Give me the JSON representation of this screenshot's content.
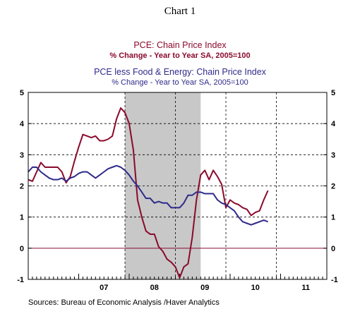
{
  "chart_data": {
    "type": "line",
    "title": "Chart 1",
    "subtitle_lines": [
      "PCE: Chain Price Index",
      "% Change - Year to Year    SA, 2005=100",
      "PCE less Food & Energy: Chain Price Index",
      "% Change - Year to Year    SA, 2005=100"
    ],
    "source": "Sources:  Bureau of Economic Analysis /Haver Analytics",
    "ylim": [
      -1,
      5
    ],
    "yticks": [
      -1,
      0,
      1,
      2,
      3,
      4,
      5
    ],
    "ytick_labels": [
      "-1",
      "0",
      "1",
      "2",
      "3",
      "4",
      "5"
    ],
    "xlim": [
      2006.0,
      2011.9167
    ],
    "xtick_labels": [
      {
        "label": "07",
        "x": 2007.5
      },
      {
        "label": "08",
        "x": 2008.5
      },
      {
        "label": "09",
        "x": 2009.5
      },
      {
        "label": "10",
        "x": 2010.5
      },
      {
        "label": "11",
        "x": 2011.5
      }
    ],
    "vertical_gridlines": [
      2007.9167,
      2008.9167,
      2009.9167,
      2010.9167
    ],
    "recession": [
      2007.9167,
      2009.4167
    ],
    "zero_line": true,
    "series": [
      {
        "name": "PCE: Chain Price Index",
        "color": "#8b0a2c",
        "points": [
          [
            2006.0,
            2.2
          ],
          [
            2006.0833,
            2.15
          ],
          [
            2006.1667,
            2.45
          ],
          [
            2006.25,
            2.75
          ],
          [
            2006.3333,
            2.6
          ],
          [
            2006.4167,
            2.6
          ],
          [
            2006.5,
            2.6
          ],
          [
            2006.5833,
            2.6
          ],
          [
            2006.6667,
            2.45
          ],
          [
            2006.75,
            2.1
          ],
          [
            2006.8333,
            2.3
          ],
          [
            2006.9167,
            2.8
          ],
          [
            2007.0,
            3.25
          ],
          [
            2007.0833,
            3.65
          ],
          [
            2007.1667,
            3.6
          ],
          [
            2007.25,
            3.55
          ],
          [
            2007.3333,
            3.6
          ],
          [
            2007.4167,
            3.45
          ],
          [
            2007.5,
            3.45
          ],
          [
            2007.5833,
            3.5
          ],
          [
            2007.6667,
            3.6
          ],
          [
            2007.75,
            4.15
          ],
          [
            2007.8333,
            4.5
          ],
          [
            2007.9167,
            4.35
          ],
          [
            2008.0,
            4.0
          ],
          [
            2008.0833,
            3.15
          ],
          [
            2008.1667,
            1.55
          ],
          [
            2008.25,
            1.0
          ],
          [
            2008.3333,
            0.55
          ],
          [
            2008.4167,
            0.45
          ],
          [
            2008.5,
            0.45
          ],
          [
            2008.5833,
            0.05
          ],
          [
            2008.6667,
            -0.1
          ],
          [
            2008.75,
            -0.35
          ],
          [
            2008.8333,
            -0.45
          ],
          [
            2008.9167,
            -0.6
          ],
          [
            2009.0,
            -0.95
          ],
          [
            2009.0833,
            -0.6
          ],
          [
            2009.1667,
            -0.5
          ],
          [
            2009.25,
            0.35
          ],
          [
            2009.3333,
            1.55
          ],
          [
            2009.4167,
            2.35
          ],
          [
            2009.5,
            2.5
          ],
          [
            2009.5833,
            2.2
          ],
          [
            2009.6667,
            2.5
          ],
          [
            2009.75,
            2.3
          ],
          [
            2009.8333,
            2.05
          ],
          [
            2009.9167,
            1.3
          ],
          [
            2010.0,
            1.55
          ],
          [
            2010.0833,
            1.45
          ],
          [
            2010.1667,
            1.4
          ],
          [
            2010.25,
            1.3
          ],
          [
            2010.3333,
            1.25
          ],
          [
            2010.4167,
            1.05
          ],
          [
            2010.5,
            1.15
          ],
          [
            2010.5833,
            1.2
          ],
          [
            2010.6667,
            1.55
          ],
          [
            2010.75,
            1.85
          ]
        ]
      },
      {
        "name": "PCE less Food & Energy: Chain Price Index",
        "color": "#2e2a8a",
        "points": [
          [
            2006.0,
            2.45
          ],
          [
            2006.0833,
            2.6
          ],
          [
            2006.1667,
            2.6
          ],
          [
            2006.25,
            2.45
          ],
          [
            2006.3333,
            2.35
          ],
          [
            2006.4167,
            2.25
          ],
          [
            2006.5,
            2.2
          ],
          [
            2006.5833,
            2.2
          ],
          [
            2006.6667,
            2.25
          ],
          [
            2006.75,
            2.15
          ],
          [
            2006.8333,
            2.25
          ],
          [
            2006.9167,
            2.3
          ],
          [
            2007.0,
            2.4
          ],
          [
            2007.0833,
            2.45
          ],
          [
            2007.1667,
            2.45
          ],
          [
            2007.25,
            2.35
          ],
          [
            2007.3333,
            2.25
          ],
          [
            2007.4167,
            2.35
          ],
          [
            2007.5,
            2.45
          ],
          [
            2007.5833,
            2.55
          ],
          [
            2007.6667,
            2.6
          ],
          [
            2007.75,
            2.65
          ],
          [
            2007.8333,
            2.6
          ],
          [
            2007.9167,
            2.5
          ],
          [
            2008.0,
            2.35
          ],
          [
            2008.0833,
            2.15
          ],
          [
            2008.1667,
            2.0
          ],
          [
            2008.25,
            1.8
          ],
          [
            2008.3333,
            1.6
          ],
          [
            2008.4167,
            1.6
          ],
          [
            2008.5,
            1.45
          ],
          [
            2008.5833,
            1.5
          ],
          [
            2008.6667,
            1.45
          ],
          [
            2008.75,
            1.45
          ],
          [
            2008.8333,
            1.3
          ],
          [
            2008.9167,
            1.3
          ],
          [
            2009.0,
            1.3
          ],
          [
            2009.0833,
            1.45
          ],
          [
            2009.1667,
            1.7
          ],
          [
            2009.25,
            1.7
          ],
          [
            2009.3333,
            1.8
          ],
          [
            2009.4167,
            1.8
          ],
          [
            2009.5,
            1.75
          ],
          [
            2009.5833,
            1.75
          ],
          [
            2009.6667,
            1.75
          ],
          [
            2009.75,
            1.55
          ],
          [
            2009.8333,
            1.45
          ],
          [
            2009.9167,
            1.4
          ],
          [
            2010.0,
            1.3
          ],
          [
            2010.0833,
            1.2
          ],
          [
            2010.1667,
            1.0
          ],
          [
            2010.25,
            0.85
          ],
          [
            2010.3333,
            0.8
          ],
          [
            2010.4167,
            0.75
          ],
          [
            2010.5,
            0.8
          ],
          [
            2010.5833,
            0.85
          ],
          [
            2010.6667,
            0.9
          ],
          [
            2010.75,
            0.85
          ]
        ]
      }
    ]
  }
}
